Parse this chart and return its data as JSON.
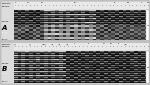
{
  "fig_width": 1.5,
  "fig_height": 0.85,
  "dpi": 100,
  "outer_bg": "#c8c8c8",
  "panel_bg": "#e0e0e0",
  "gel_dark": 0.12,
  "gel_mid": 0.55,
  "gel_bright": 0.92,
  "n_lanes": 36,
  "n_rows_A": 14,
  "n_rows_B": 14,
  "label_A": "A",
  "label_B": "B",
  "header_text_color": "#111111",
  "label_color": "#000000",
  "white_box_color": "#f5f5f5",
  "separator_color": "#aaaaaa",
  "left_labels_A": [
    "200bp-",
    "Others-"
  ],
  "left_labels_B": [
    "200bp-",
    "Others-"
  ]
}
